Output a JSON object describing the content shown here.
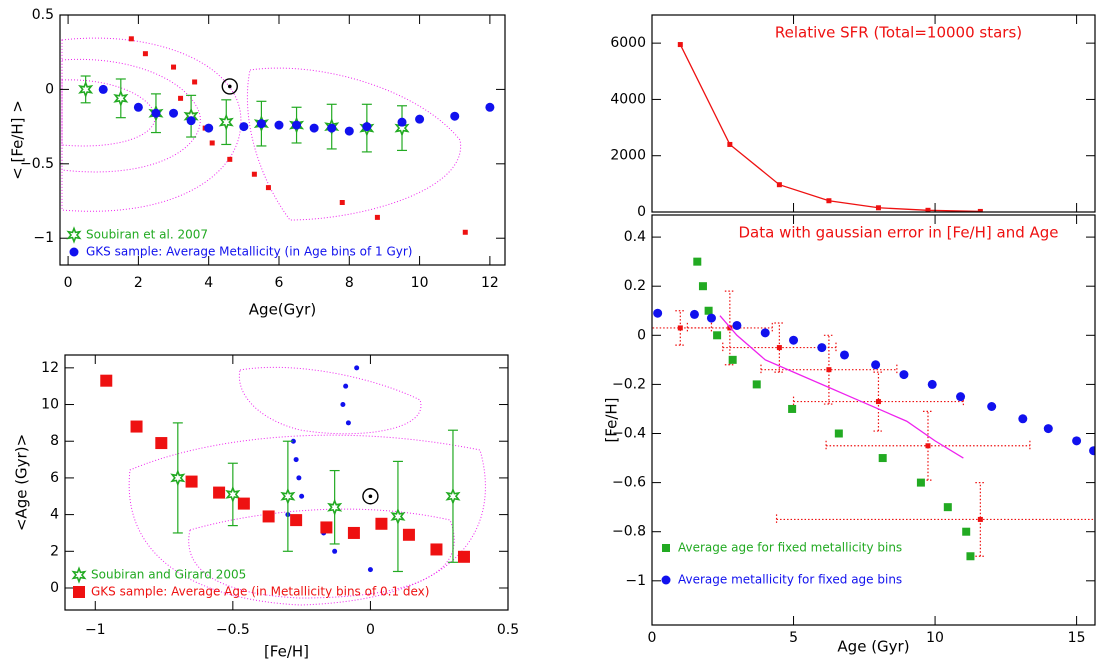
{
  "chart_data": [
    {
      "type": "scatter",
      "xlabel": "Age(Gyr)",
      "ylabel": "< [Fe/H] >",
      "xlim": [
        -0.23,
        12.43
      ],
      "ylim": [
        -1.18,
        0.5
      ],
      "xticks": [
        0,
        2,
        4,
        6,
        8,
        10,
        12
      ],
      "yticks": [
        {
          "value": -1,
          "label": "−1"
        },
        {
          "value": -0.5,
          "label": "−0.5"
        },
        0,
        0.5
      ],
      "legend": "lower left",
      "sun": {
        "x": 4.6,
        "y": 0.02
      },
      "series": [
        {
          "color": "#ee1111",
          "marker": "small-square",
          "x": [
            1.8,
            2.2,
            3.0,
            3.2,
            3.5,
            3.6,
            3.9,
            4.1,
            4.6,
            5.3,
            5.7,
            7.8,
            8.8,
            11.3
          ],
          "y": [
            0.34,
            0.24,
            0.15,
            -0.06,
            -0.17,
            0.05,
            -0.26,
            -0.36,
            -0.47,
            -0.57,
            -0.66,
            -0.76,
            -0.86,
            -0.96
          ]
        },
        {
          "name": "Soubiran et al. 2007",
          "color": "#22aa22",
          "marker": "star",
          "x": [
            0.5,
            1.5,
            2.5,
            3.5,
            4.5,
            5.5,
            6.5,
            7.5,
            8.5,
            9.5
          ],
          "y": [
            0.0,
            -0.06,
            -0.16,
            -0.18,
            -0.22,
            -0.23,
            -0.24,
            -0.25,
            -0.26,
            -0.26
          ],
          "yerr": [
            0.09,
            0.13,
            0.13,
            0.14,
            0.15,
            0.15,
            0.12,
            0.15,
            0.16,
            0.15
          ]
        },
        {
          "name": "GKS sample: Average Metallicity (in Age bins of 1 Gyr)",
          "color": "#1111ee",
          "marker": "circle",
          "x": [
            1.0,
            2.0,
            2.5,
            3.0,
            3.5,
            4.0,
            5.0,
            5.5,
            6.0,
            6.5,
            7.0,
            7.5,
            8.0,
            8.5,
            9.5,
            10.0,
            11.0,
            12.0
          ],
          "y": [
            0.0,
            -0.12,
            -0.16,
            -0.16,
            -0.21,
            -0.26,
            -0.25,
            -0.23,
            -0.24,
            -0.24,
            -0.26,
            -0.26,
            -0.28,
            -0.25,
            -0.22,
            -0.2,
            -0.18,
            -0.12
          ]
        }
      ]
    },
    {
      "type": "scatter",
      "xlabel": "[Fe/H]",
      "ylabel": "<Age (Gyr)>",
      "xlim": [
        -1.11,
        0.5
      ],
      "ylim": [
        -1.2,
        12.7
      ],
      "xticks": [
        {
          "value": -1,
          "label": "−1"
        },
        {
          "value": -0.5,
          "label": "−0.5"
        },
        0,
        0.5
      ],
      "yticks": [
        0,
        2,
        4,
        6,
        8,
        10,
        12
      ],
      "legend": "lower left",
      "sun": {
        "x": 0.0,
        "y": 5.0
      },
      "series": [
        {
          "color": "#1111ee",
          "marker": "small-circle",
          "x": [
            -0.05,
            -0.09,
            -0.1,
            -0.08,
            -0.28,
            -0.27,
            -0.26,
            -0.25,
            -0.3,
            -0.17,
            -0.13,
            0.0
          ],
          "y": [
            12,
            11,
            10,
            9,
            8,
            7,
            6,
            5,
            4,
            3,
            2,
            1
          ]
        },
        {
          "name": "Soubiran and Girard 2005",
          "color": "#22aa22",
          "marker": "star",
          "x": [
            -0.7,
            -0.5,
            -0.3,
            -0.13,
            0.1,
            0.3
          ],
          "y": [
            6.0,
            5.1,
            5.0,
            4.4,
            3.9,
            5.0
          ],
          "yerr": [
            3.0,
            1.7,
            3.0,
            2.0,
            3.0,
            3.6
          ]
        },
        {
          "name": "GKS sample: Average Age (in Metallicity bins of 0.1 dex)",
          "color": "#ee1111",
          "marker": "big-square",
          "x": [
            -0.96,
            -0.85,
            -0.76,
            -0.65,
            -0.55,
            -0.46,
            -0.37,
            -0.27,
            -0.16,
            -0.06,
            0.04,
            0.14,
            0.24,
            0.34
          ],
          "y": [
            11.3,
            8.8,
            7.9,
            5.8,
            5.2,
            4.6,
            3.9,
            3.7,
            3.3,
            3.0,
            3.5,
            2.9,
            2.1,
            1.7
          ]
        }
      ]
    },
    {
      "type": "line",
      "annotation": "Relative SFR (Total=10000 stars)",
      "annotation_color": "#ee1111",
      "xlim": [
        0,
        15.65
      ],
      "ylim": [
        0,
        7000
      ],
      "xticks": [
        0,
        5,
        10,
        15
      ],
      "show_xtick_labels": false,
      "yticks": [
        0,
        2000,
        4000,
        6000
      ],
      "series": [
        {
          "color": "#ee1111",
          "marker": "small-square",
          "line": true,
          "x": [
            1.0,
            2.75,
            4.5,
            6.25,
            8.0,
            9.75,
            11.6
          ],
          "y": [
            5950,
            2400,
            970,
            400,
            150,
            60,
            20
          ]
        }
      ]
    },
    {
      "type": "scatter",
      "xlabel": "Age (Gyr)",
      "ylabel": "[Fe/H]",
      "annotation": "Data with gaussian error in [Fe/H] and Age",
      "annotation_color": "#ee1111",
      "xlim": [
        0,
        15.65
      ],
      "ylim": [
        -1.18,
        0.49
      ],
      "xticks": [
        0,
        5,
        10,
        15
      ],
      "yticks": [
        {
          "value": -1,
          "label": "−1"
        },
        {
          "value": -0.8,
          "label": "−0.8"
        },
        {
          "value": -0.6,
          "label": "−0.6"
        },
        {
          "value": -0.4,
          "label": "−0.4"
        },
        {
          "value": -0.2,
          "label": "−0.2"
        },
        0,
        0.2,
        0.4
      ],
      "legend": "lower left",
      "series": [
        {
          "color": "#ee1111",
          "marker": "small-square",
          "dotted_errors": true,
          "x": [
            1.0,
            2.75,
            4.5,
            6.25,
            8.0,
            9.75,
            11.6
          ],
          "y": [
            0.03,
            0.03,
            -0.05,
            -0.14,
            -0.27,
            -0.45,
            -0.75
          ],
          "xerr": [
            1.1,
            1.5,
            2.0,
            2.4,
            3.0,
            3.6,
            7.2
          ],
          "yerr": [
            0.07,
            0.15,
            0.1,
            0.14,
            0.12,
            0.14,
            0.15
          ]
        },
        {
          "color": "#ee22ee",
          "line": true,
          "x": [
            2.4,
            3,
            4,
            5,
            6,
            7,
            8,
            9,
            10,
            11
          ],
          "y": [
            0.08,
            0.0,
            -0.1,
            -0.15,
            -0.2,
            -0.25,
            -0.3,
            -0.35,
            -0.43,
            -0.5
          ]
        },
        {
          "name": "Average age for fixed metallicity bins",
          "color": "#22aa22",
          "marker": "square",
          "x": [
            1.6,
            1.8,
            2.0,
            2.3,
            2.85,
            3.7,
            4.95,
            6.6,
            8.15,
            9.5,
            10.45,
            11.1,
            11.25
          ],
          "y": [
            0.3,
            0.2,
            0.1,
            0.0,
            -0.1,
            -0.2,
            -0.3,
            -0.4,
            -0.5,
            -0.6,
            -0.7,
            -0.8,
            -0.9
          ]
        },
        {
          "name": "Average metallicity for fixed age bins",
          "color": "#1111ee",
          "marker": "circle",
          "x": [
            0.2,
            1.5,
            2.1,
            3.0,
            4.0,
            5.0,
            6.0,
            6.8,
            7.9,
            8.9,
            9.9,
            10.9,
            12.0,
            13.1,
            14.0,
            15.0,
            15.6
          ],
          "y": [
            0.09,
            0.085,
            0.07,
            0.04,
            0.01,
            -0.02,
            -0.05,
            -0.08,
            -0.12,
            -0.16,
            -0.2,
            -0.25,
            -0.29,
            -0.34,
            -0.38,
            -0.43,
            -0.47
          ]
        }
      ]
    }
  ]
}
